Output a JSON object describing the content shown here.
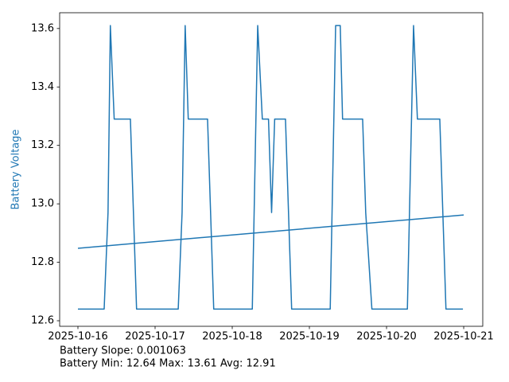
{
  "chart_data": {
    "type": "line",
    "ylabel": "Battery Voltage",
    "annotations": [
      "Battery Slope: 0.001063",
      "Battery Min: 12.64 Max: 13.61 Avg: 12.91"
    ],
    "xlim": [
      -0.237,
      5.247
    ],
    "xticks": [
      {
        "value": 0,
        "label": "2025-10-16"
      },
      {
        "value": 1,
        "label": "2025-10-17"
      },
      {
        "value": 2,
        "label": "2025-10-18"
      },
      {
        "value": 3,
        "label": "2025-10-19"
      },
      {
        "value": 4,
        "label": "2025-10-20"
      },
      {
        "value": 5,
        "label": "2025-10-21"
      }
    ],
    "ylim": [
      12.581,
      13.654
    ],
    "yticks": [
      12.6,
      12.8,
      {
        "value": 13.0,
        "label": "13.0"
      },
      13.2,
      13.4,
      13.6
    ],
    "grid": false,
    "series": [
      {
        "color": "#1f77b4",
        "x": [
          0,
          0.34,
          0.39,
          0.42,
          0.47,
          0.68,
          0.76,
          1.3,
          1.35,
          1.39,
          1.43,
          1.68,
          1.76,
          2.26,
          2.33,
          2.39,
          2.47,
          2.51,
          2.55,
          2.69,
          2.77,
          3.27,
          3.34,
          3.4,
          3.43,
          3.69,
          3.73,
          3.81,
          4.27,
          4.35,
          4.4,
          4.69,
          4.77,
          4.99
        ],
        "values": [
          12.64,
          12.64,
          12.97,
          13.61,
          13.29,
          13.29,
          12.64,
          12.64,
          12.97,
          13.61,
          13.29,
          13.29,
          12.64,
          12.64,
          13.61,
          13.29,
          13.29,
          12.97,
          13.29,
          13.29,
          12.64,
          12.64,
          13.61,
          13.61,
          13.29,
          13.29,
          12.97,
          12.64,
          12.64,
          13.61,
          13.29,
          13.29,
          12.64,
          12.64
        ]
      },
      {
        "color": "#1f77b4",
        "x": [
          0,
          5
        ],
        "values": [
          12.848,
          12.962
        ]
      }
    ]
  }
}
